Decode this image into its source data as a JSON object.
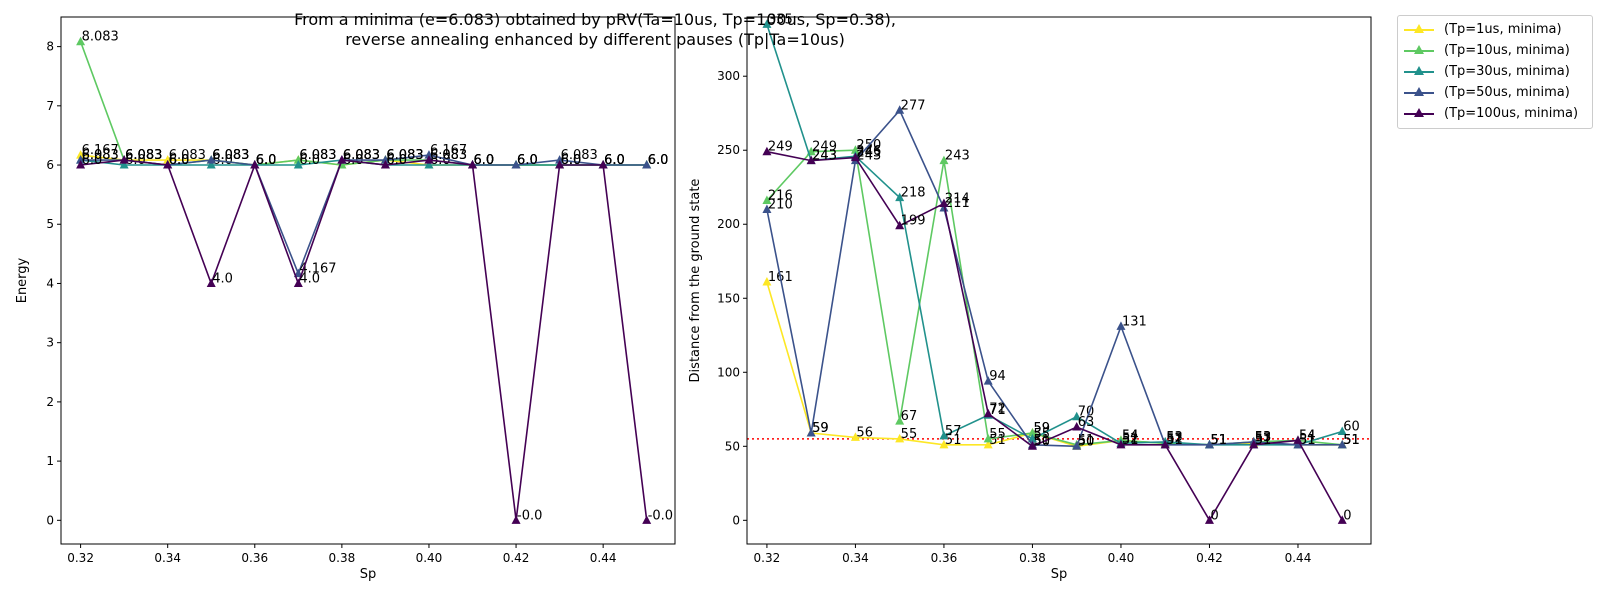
{
  "title_line1": "From a minima (e=6.083) obtained by pRV(Ta=10us, Tp=100us, Sp=0.38),",
  "title_line2": "reverse annealing enhanced by different pauses (Tp|Ta=10us)",
  "chart_data": [
    {
      "type": "line",
      "xlabel": "Sp",
      "ylabel": "Energy",
      "x": [
        0.32,
        0.33,
        0.34,
        0.35,
        0.36,
        0.37,
        0.38,
        0.39,
        0.4,
        0.41,
        0.42,
        0.43,
        0.44,
        0.45
      ],
      "xticks": [
        "0.32",
        "0.34",
        "0.36",
        "0.38",
        "0.40",
        "0.42",
        "0.44"
      ],
      "yticks": [
        "0",
        "1",
        "2",
        "3",
        "4",
        "5",
        "6",
        "7",
        "8"
      ],
      "ylim": [
        -0.4,
        8.5
      ],
      "xlim": [
        0.3155,
        0.4565
      ],
      "series": [
        {
          "name": "(Tp=1us, minima)",
          "color": "#fde725",
          "values": [
            6.167,
            6.083,
            6.083,
            6.083,
            6.0,
            6.083,
            6.0,
            6.083,
            6.0,
            6.0,
            6.0,
            6.0,
            6.0,
            6.0
          ],
          "labels": [
            "6.167",
            "6.083",
            "6.083",
            "6.083",
            "6.0",
            "6.083",
            "6.0",
            "6.083",
            "6.0",
            "6.0",
            "6.0",
            "6.0",
            "6.0",
            "6.0"
          ]
        },
        {
          "name": "(Tp=10us, minima)",
          "color": "#5ec962",
          "values": [
            8.083,
            6.083,
            6.0,
            6.083,
            6.0,
            6.083,
            6.0,
            6.083,
            6.083,
            6.0,
            6.0,
            6.0,
            6.0,
            6.0
          ],
          "labels": [
            "8.083",
            "6.083",
            "6.0",
            "6.083",
            "6.0",
            "6.083",
            "6.0",
            "6.083",
            "6.083",
            "6.0",
            "6.0",
            "6.0",
            "6.0",
            "6.0"
          ]
        },
        {
          "name": "(Tp=30us, minima)",
          "color": "#21918c",
          "values": [
            6.083,
            6.0,
            6.0,
            6.0,
            6.0,
            6.0,
            6.083,
            6.0,
            6.0,
            6.0,
            6.0,
            6.0,
            6.0,
            6.0
          ],
          "labels": [
            "6.083",
            "6.0",
            "6.0",
            "6.0",
            "6.0",
            "6.0",
            "6.083",
            "6.0",
            "6.0",
            "6.0",
            "6.0",
            "6.0",
            "6.0",
            "6.0"
          ]
        },
        {
          "name": "(Tp=50us, minima)",
          "color": "#3b528b",
          "values": [
            6.083,
            6.083,
            6.0,
            6.083,
            6.0,
            4.167,
            6.083,
            6.083,
            6.167,
            6.0,
            6.0,
            6.083,
            6.0,
            6.0
          ],
          "labels": [
            "6.083",
            "6.083",
            "6.0",
            "6.083",
            "6.0",
            "4.167",
            "6.083",
            "6.083",
            "6.167",
            "6.0",
            "6.0",
            "6.083",
            "6.0",
            "6.0"
          ]
        },
        {
          "name": "(Tp=100us, minima)",
          "color": "#440154",
          "values": [
            6.0,
            6.083,
            6.0,
            4.0,
            6.0,
            4.0,
            6.083,
            6.0,
            6.083,
            6.0,
            0.0,
            6.0,
            6.0,
            0.0
          ],
          "labels": [
            "6.0",
            "6.083",
            "6.0",
            "4.0",
            "6.0",
            "4.0",
            "6.083",
            "6.0",
            "6.083",
            "6.0",
            "-0.0",
            "6.0",
            "6.0",
            "-0.0"
          ]
        }
      ]
    },
    {
      "type": "line",
      "xlabel": "Sp",
      "ylabel": "Distance from the ground state",
      "x": [
        0.32,
        0.33,
        0.34,
        0.35,
        0.36,
        0.37,
        0.38,
        0.39,
        0.4,
        0.41,
        0.42,
        0.43,
        0.44,
        0.45
      ],
      "xticks": [
        "0.32",
        "0.34",
        "0.36",
        "0.38",
        "0.40",
        "0.42",
        "0.44"
      ],
      "yticks": [
        "0",
        "50",
        "100",
        "150",
        "200",
        "250",
        "300"
      ],
      "ylim": [
        -16,
        340
      ],
      "xlim": [
        0.3155,
        0.4565
      ],
      "reference_line": {
        "y": 55,
        "color": "#ff0000",
        "style": "dotted"
      },
      "series": [
        {
          "name": "(Tp=1us, minima)",
          "color": "#fde725",
          "values": [
            161,
            59,
            56,
            55,
            51,
            51,
            59,
            50,
            54,
            52,
            51,
            52,
            51,
            51
          ]
        },
        {
          "name": "(Tp=10us, minima)",
          "color": "#5ec962",
          "values": [
            216,
            249,
            250,
            67,
            243,
            55,
            59,
            51,
            54,
            52,
            51,
            53,
            54,
            51
          ]
        },
        {
          "name": "(Tp=30us, minima)",
          "color": "#21918c",
          "values": [
            335,
            243,
            246,
            218,
            57,
            71,
            55,
            70,
            52,
            53,
            51,
            51,
            51,
            60
          ]
        },
        {
          "name": "(Tp=50us, minima)",
          "color": "#3b528b",
          "values": [
            210,
            59,
            243,
            277,
            211,
            94,
            51,
            50,
            131,
            51,
            51,
            53,
            51,
            51
          ]
        },
        {
          "name": "(Tp=100us, minima)",
          "color": "#440154",
          "values": [
            249,
            243,
            245,
            199,
            214,
            72,
            50,
            63,
            51,
            51,
            0,
            51,
            54,
            0
          ]
        }
      ]
    }
  ]
}
